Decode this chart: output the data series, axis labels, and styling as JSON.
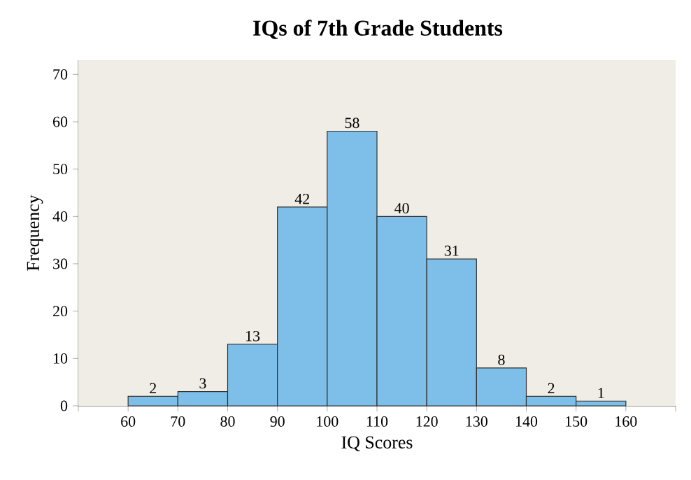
{
  "chart_data": {
    "type": "histogram",
    "title": "IQs of 7th Grade Students",
    "xlabel": "IQ Scores",
    "ylabel": "Frequency",
    "bins": [
      60,
      70,
      80,
      90,
      100,
      110,
      120,
      130,
      140,
      150,
      160
    ],
    "values": [
      2,
      3,
      13,
      42,
      58,
      40,
      31,
      8,
      2,
      1
    ],
    "color": "#7dbfe8",
    "xlim": [
      50,
      170
    ],
    "xticks": [
      {
        "value": 50,
        "label": null
      },
      60,
      70,
      80,
      90,
      100,
      110,
      120,
      130,
      140,
      150,
      160,
      {
        "value": 170,
        "label": null
      }
    ],
    "ylim": [
      0,
      73
    ],
    "yticks": [
      0,
      10,
      20,
      30,
      40,
      50,
      60,
      70
    ],
    "grid": "y",
    "data_labels": true
  }
}
